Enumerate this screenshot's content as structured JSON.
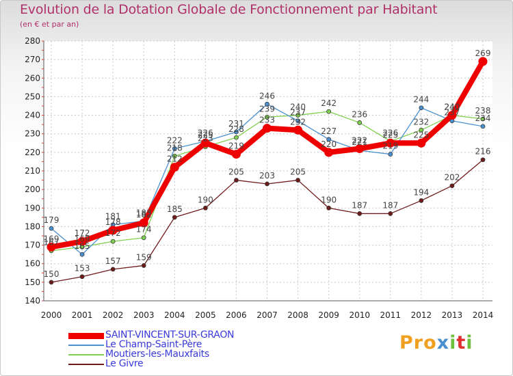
{
  "chart_data": {
    "type": "line",
    "title": "Evolution de la Dotation Globale de Fonctionnement par Habitant",
    "subtitle": "(en € et par an)",
    "x": [
      "2000",
      "2001",
      "2002",
      "2003",
      "2004",
      "2005",
      "2006",
      "2007",
      "2008",
      "2009",
      "2010",
      "2011",
      "2012",
      "2013",
      "2014"
    ],
    "yticks": [
      "140",
      "150",
      "160",
      "170",
      "180",
      "190",
      "200",
      "210",
      "220",
      "230",
      "240",
      "250",
      "260",
      "270",
      "280"
    ],
    "ylim": [
      140,
      280
    ],
    "series": [
      {
        "name": "SAINT-VINCENT-SUR-GRAON",
        "color": "#ee0000",
        "values": [
          169,
          172,
          178,
          182,
          212,
          225,
          219,
          233,
          232,
          220,
          222,
          225,
          225,
          240,
          269
        ],
        "labels": [
          "169",
          "172",
          "178",
          "182",
          "212",
          "225",
          "219",
          "233",
          "232",
          "220",
          "222",
          "225",
          "225",
          "240",
          "269"
        ]
      },
      {
        "name": "Le Champ-Saint-Père",
        "color": "#4a90d0",
        "values": [
          179,
          165,
          181,
          183,
          222,
          226,
          231,
          246,
          237,
          227,
          221,
          219,
          244,
          237,
          234
        ],
        "labels": [
          "179",
          "165",
          "181",
          "183",
          "222",
          "226",
          "231",
          "246",
          "237",
          "227",
          "221",
          "219",
          "244",
          "237",
          "234"
        ]
      },
      {
        "name": "Moutiers-les-Mauxfaits",
        "color": "#80d050",
        "values": [
          167,
          169,
          172,
          174,
          218,
          223,
          228,
          239,
          240,
          242,
          236,
          226,
          232,
          240,
          238
        ],
        "labels": [
          "167",
          "169",
          "172",
          "174",
          "218",
          "223",
          "228",
          "239",
          "240",
          "242",
          "236",
          "226",
          "232",
          "240",
          "238"
        ]
      },
      {
        "name": "Le Givre",
        "color": "#6e1a1a",
        "values": [
          150,
          153,
          157,
          159,
          185,
          190,
          205,
          203,
          205,
          190,
          187,
          187,
          194,
          202,
          216
        ],
        "labels": [
          "150",
          "153",
          "157",
          "159",
          "185",
          "190",
          "205",
          "203",
          "205",
          "190",
          "187",
          "187",
          "194",
          "202",
          "216"
        ]
      }
    ],
    "legend_position": "bottom-left",
    "grid": true
  },
  "brand": {
    "prefix": "Pro",
    "x": "x",
    "i": "i",
    "t": "t",
    "i2": "i"
  },
  "colors": {
    "title": "#b0306a",
    "legend_text": "#3a3ad8",
    "brand_orange": "#f0a020",
    "brand_blue": "#4a90d0",
    "brand_green": "#70c040",
    "brand_red": "#e03030"
  }
}
